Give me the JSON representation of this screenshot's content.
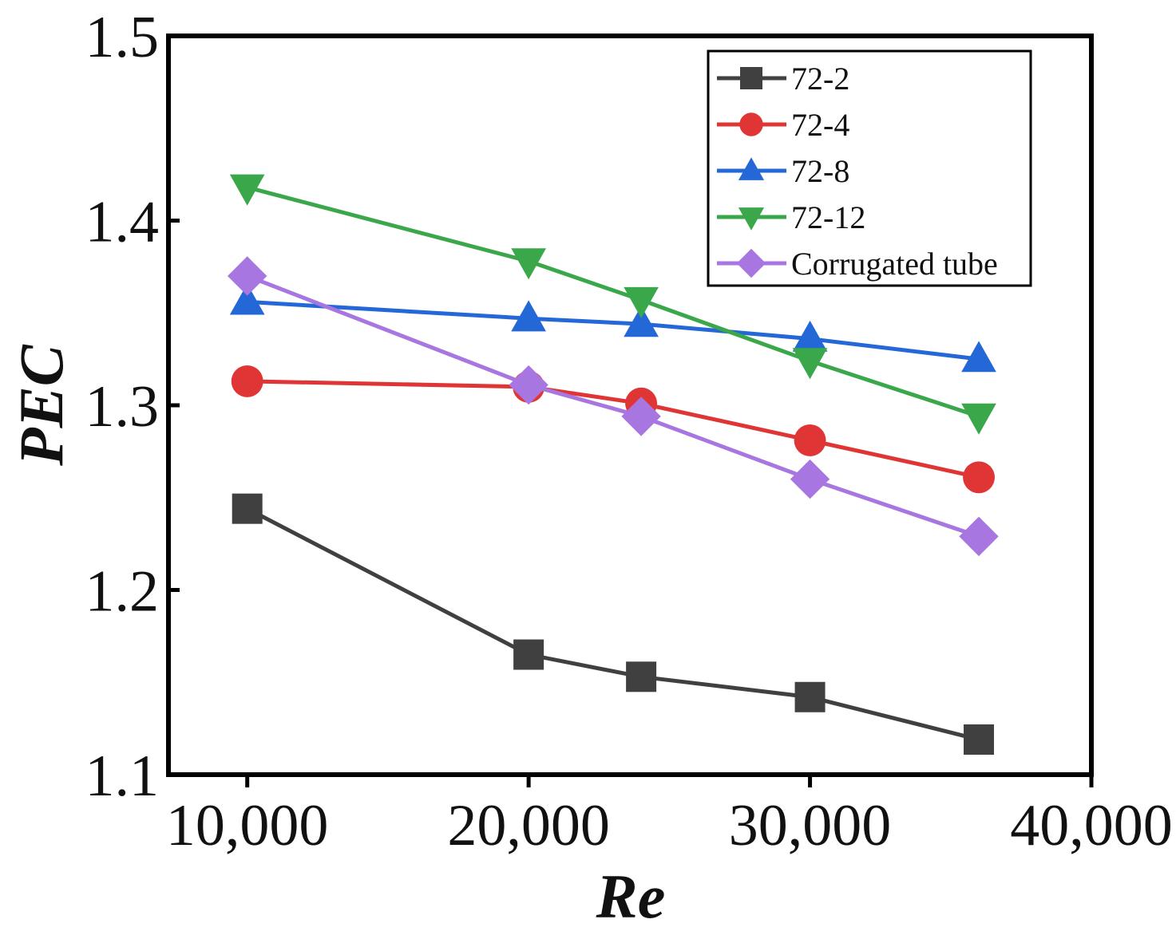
{
  "chart_data": {
    "type": "line",
    "title": "",
    "xlabel": "Re",
    "ylabel": "PEC",
    "xlim": [
      7200,
      40000
    ],
    "ylim": [
      1.1,
      1.5
    ],
    "x_ticks": [
      10000,
      20000,
      30000,
      40000
    ],
    "x_tick_labels": [
      "10,000",
      "20,000",
      "30,000",
      "40,000"
    ],
    "y_ticks": [
      1.1,
      1.2,
      1.3,
      1.4,
      1.5
    ],
    "y_tick_labels": [
      "1.1",
      "1.2",
      "1.3",
      "1.4",
      "1.5"
    ],
    "grid": false,
    "legend_position": "top-right",
    "x": [
      10000,
      20000,
      24000,
      30000,
      36000
    ],
    "series": [
      {
        "name": "72-2",
        "marker": "square",
        "color": "#404040",
        "values": [
          1.244,
          1.165,
          1.153,
          1.142,
          1.119
        ]
      },
      {
        "name": "72-4",
        "marker": "circle",
        "color": "#e03535",
        "values": [
          1.313,
          1.31,
          1.301,
          1.281,
          1.261
        ]
      },
      {
        "name": "72-8",
        "marker": "triangle-up",
        "color": "#2468d8",
        "values": [
          1.356,
          1.347,
          1.344,
          1.336,
          1.325
        ]
      },
      {
        "name": "72-12",
        "marker": "triangle-down",
        "color": "#3aa84a",
        "values": [
          1.418,
          1.378,
          1.357,
          1.324,
          1.294
        ]
      },
      {
        "name": "Corrugated tube",
        "marker": "diamond",
        "color": "#a876e0",
        "values": [
          1.37,
          1.311,
          1.294,
          1.26,
          1.229
        ]
      }
    ]
  }
}
